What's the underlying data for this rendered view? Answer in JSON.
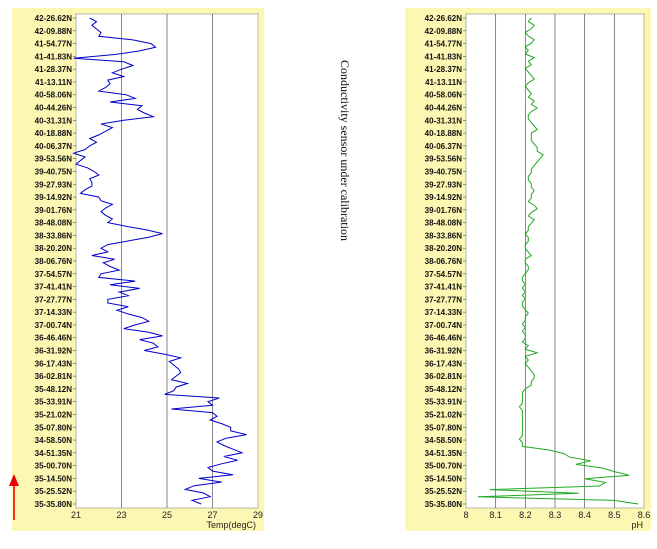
{
  "annotation": "Conductivity sensor under calibration",
  "colors": {
    "panel_bg": "#fdf7b4",
    "plot_bg": "#ffffff",
    "grid": "#555555",
    "temp_line": "#0000cc",
    "ph_line": "#22aa22",
    "arrow": "#ee0000"
  },
  "latitude_labels": [
    "42-26.62N",
    "42-09.88N",
    "41-54.77N",
    "41-41.83N",
    "41-28.37N",
    "41-13.11N",
    "40-58.06N",
    "40-44.26N",
    "40-31.31N",
    "40-18.88N",
    "40-06.37N",
    "39-53.56N",
    "39-40.75N",
    "39-27.93N",
    "39-14.92N",
    "39-01.76N",
    "38-48.08N",
    "38-33.86N",
    "38-20.20N",
    "38-06.76N",
    "37-54.57N",
    "37-41.41N",
    "37-27.77N",
    "37-14.33N",
    "37-00.74N",
    "36-46.46N",
    "36-31.92N",
    "36-17.43N",
    "36-02.81N",
    "35-48.12N",
    "35-33.91N",
    "35-21.02N",
    "35-07.80N",
    "34-58.50N",
    "34-51.35N",
    "35-00.70N",
    "35-14.50N",
    "35-25.52N",
    "35-35.80N"
  ],
  "chart_data": [
    {
      "type": "line",
      "xlabel": "Temp(degC)",
      "xlim": [
        21,
        29
      ],
      "xticks": [
        "21",
        "23",
        "25",
        "27",
        "29"
      ],
      "y_categories_ref": "latitude_labels",
      "series": [
        {
          "color": "#0000cc",
          "values": [
            21.6,
            21.9,
            21.7,
            21.9,
            22.1,
            22.0,
            23.5,
            24.3,
            24.5,
            23.8,
            22.7,
            20.9,
            23.1,
            23.5,
            23.0,
            22.6,
            23.1,
            22.4,
            22.5,
            22.3,
            22.0,
            23.2,
            23.6,
            22.5,
            23.9,
            23.7,
            24.0,
            24.4,
            23.1,
            22.1,
            22.6,
            22.3,
            22.0,
            21.6,
            21.9,
            21.6,
            21.4,
            20.9,
            21.4,
            21.2,
            21.0,
            21.5,
            21.8,
            22.0,
            21.6,
            21.7,
            21.7,
            21.4,
            21.2,
            22.0,
            22.1,
            22.6,
            22.3,
            22.1,
            22.3,
            22.6,
            22.4,
            23.2,
            24.1,
            24.8,
            24.2,
            23.3,
            22.4,
            22.1,
            22.4,
            21.7,
            22.7,
            22.2,
            22.5,
            22.9,
            22.1,
            22.0,
            23.6,
            22.5,
            23.8,
            22.9,
            23.3,
            22.4,
            22.4,
            23.3,
            22.8,
            23.3,
            23.9,
            24.2,
            23.6,
            23.1,
            24.2,
            24.8,
            23.8,
            24.4,
            24.6,
            24.0,
            24.9,
            25.6,
            25.1,
            25.3,
            25.5,
            25.6,
            25.4,
            25.2,
            25.9,
            25.4,
            25.3,
            24.9,
            27.3,
            26.8,
            27.0,
            25.2,
            27.0,
            27.2,
            26.9,
            27.4,
            27.8,
            27.8,
            28.5,
            27.6,
            27.2,
            27.5,
            27.9,
            28.3,
            27.5,
            28.1,
            27.4,
            26.8,
            27.0,
            27.9,
            26.4,
            27.4,
            26.2,
            25.8,
            26.6,
            26.9,
            26.1,
            26.5
          ]
        }
      ]
    },
    {
      "type": "line",
      "xlabel": "pH",
      "xlim": [
        8,
        8.6
      ],
      "xticks": [
        "8",
        "8.1",
        "8.2",
        "8.3",
        "8.4",
        "8.5",
        "8.6"
      ],
      "y_categories_ref": "latitude_labels",
      "series": [
        {
          "color": "#22aa22",
          "values": [
            8.22,
            8.21,
            8.23,
            8.22,
            8.2,
            8.21,
            8.23,
            8.22,
            8.2,
            8.21,
            8.2,
            8.23,
            8.21,
            8.22,
            8.2,
            8.21,
            8.22,
            8.23,
            8.21,
            8.2,
            8.21,
            8.22,
            8.21,
            8.23,
            8.22,
            8.24,
            8.22,
            8.21,
            8.21,
            8.22,
            8.23,
            8.24,
            8.22,
            8.22,
            8.22,
            8.23,
            8.24,
            8.24,
            8.26,
            8.25,
            8.24,
            8.23,
            8.22,
            8.22,
            8.21,
            8.21,
            8.22,
            8.22,
            8.23,
            8.22,
            8.22,
            8.21,
            8.23,
            8.24,
            8.22,
            8.21,
            8.23,
            8.22,
            8.21,
            8.21,
            8.2,
            8.21,
            8.21,
            8.2,
            8.2,
            8.21,
            8.22,
            8.2,
            8.2,
            8.21,
            8.21,
            8.2,
            8.19,
            8.19,
            8.2,
            8.19,
            8.2,
            8.19,
            8.2,
            8.19,
            8.19,
            8.2,
            8.21,
            8.2,
            8.2,
            8.19,
            8.2,
            8.19,
            8.2,
            8.2,
            8.19,
            8.21,
            8.2,
            8.24,
            8.2,
            8.21,
            8.2,
            8.21,
            8.22,
            8.23,
            8.23,
            8.22,
            8.22,
            8.2,
            8.19,
            8.19,
            8.19,
            8.19,
            8.18,
            8.19,
            8.19,
            8.19,
            8.19,
            8.19,
            8.19,
            8.19,
            8.19,
            8.18,
            8.19,
            8.19,
            8.28,
            8.33,
            8.35,
            8.42,
            8.37,
            8.46,
            8.5,
            8.55,
            8.4,
            8.47,
            8.45,
            8.08,
            8.38,
            8.04,
            8.5,
            8.58
          ]
        }
      ]
    }
  ]
}
